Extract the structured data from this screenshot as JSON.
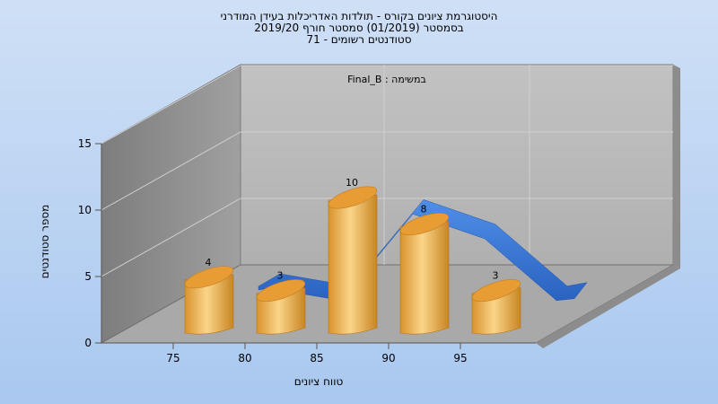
{
  "chart_data": {
    "type": "bar",
    "title_lines": [
      "היסטוגרמת ציונים בקורס - תולדות האדריכלות בעידן המודרני",
      "בסמסטר  (01/2019)  סמסטר חורף 2019/20",
      "סטודנטים רשומים - 71"
    ],
    "ylabel": "מספר סטודנטים",
    "xlabel": "טווח ציונים",
    "legend": "במשימה : Final_B",
    "x_ticks": [
      "75",
      "80",
      "85",
      "90",
      "95"
    ],
    "y_ticks": [
      "0",
      "5",
      "10",
      "15"
    ],
    "ylim": [
      0,
      15
    ],
    "categories": [
      "75",
      "80",
      "85",
      "90",
      "95"
    ],
    "values": [
      4,
      3,
      10,
      8,
      3
    ],
    "data_labels": [
      "4",
      "3",
      "10",
      "8",
      "3"
    ],
    "line_series": [
      4,
      3,
      10,
      8,
      3
    ],
    "grid": true,
    "colors": {
      "bar": "#e8a23a",
      "bar_light": "#fbd58a",
      "line": "#2f6fd0",
      "back_wall": "#b4b4b4",
      "side_wall": "#8e8e8e",
      "floor": "#a8a8a8"
    }
  }
}
